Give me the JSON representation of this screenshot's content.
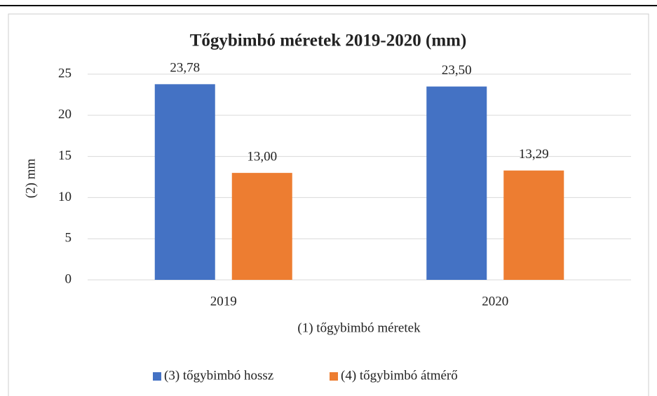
{
  "chart_data": {
    "type": "bar",
    "title": "Tőgybimbó méretek 2019-2020 (mm)",
    "x_label": "(1) tőgybimbó méretek",
    "y_label": "(2) mm",
    "categories": [
      "2019",
      "2020"
    ],
    "series": [
      {
        "name": "(3) tőgybimbó hossz",
        "color": "#4472c4",
        "values": [
          23.78,
          23.5
        ],
        "value_labels": [
          "23,78",
          "23,50"
        ]
      },
      {
        "name": "(4) tőgybimbó átmérő",
        "color": "#ed7d31",
        "values": [
          13.0,
          13.29
        ],
        "value_labels": [
          "13,00",
          "13,29"
        ]
      }
    ],
    "ylim": [
      0,
      25
    ],
    "yticks": [
      0,
      5,
      10,
      15,
      20,
      25
    ],
    "grid": true,
    "legend": "bottom"
  }
}
